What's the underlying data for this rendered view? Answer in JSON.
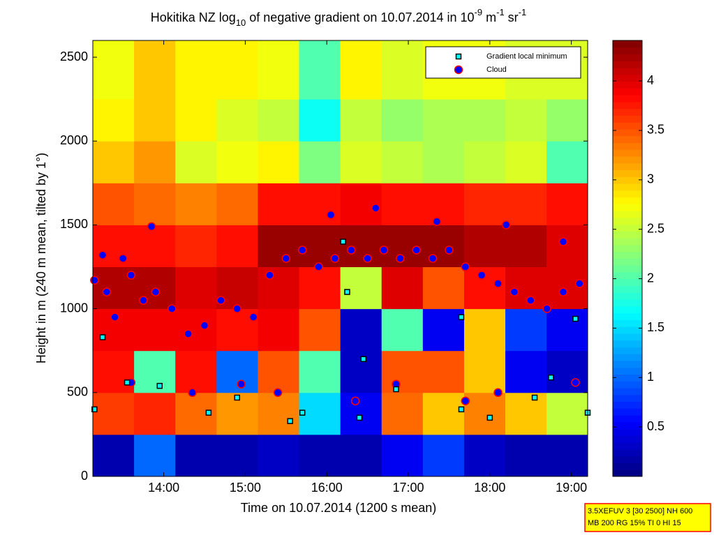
{
  "chart_data": {
    "type": "heatmap",
    "title_parts": [
      {
        "text": "Hokitika NZ log"
      },
      {
        "text": "10",
        "script": "sub"
      },
      {
        "text": " of negative gradient on 10.07.2014 in 10"
      },
      {
        "text": "-9",
        "script": "super"
      },
      {
        "text": " m"
      },
      {
        "text": "-1",
        "script": "super"
      },
      {
        "text": " sr"
      },
      {
        "text": "-1",
        "script": "super"
      }
    ],
    "xlabel": "Time on 10.07.2014 (1200 s mean)",
    "ylabel": "Height in m (240 m mean, tilted by 1°)",
    "xlim": [
      13.13,
      19.2
    ],
    "ylim": [
      0,
      2600
    ],
    "xticks": [
      {
        "value": 14,
        "label": "14:00"
      },
      {
        "value": 15,
        "label": "15:00"
      },
      {
        "value": 16,
        "label": "16:00"
      },
      {
        "value": 17,
        "label": "17:00"
      },
      {
        "value": 18,
        "label": "18:00"
      },
      {
        "value": 19,
        "label": "19:00"
      }
    ],
    "yticks": [
      0,
      500,
      1000,
      1500,
      2000,
      2500
    ],
    "clim": [
      0,
      4.41
    ],
    "cticks": [
      0.5,
      1,
      1.5,
      2,
      2.5,
      3,
      3.5,
      4
    ],
    "colormap": "jet",
    "x_bins": [
      13.13,
      13.636,
      14.142,
      14.648,
      15.154,
      15.66,
      16.166,
      16.672,
      17.178,
      17.684,
      18.19,
      18.696,
      19.2
    ],
    "y_bins": [
      0,
      250,
      500,
      750,
      1000,
      1250,
      1500,
      1750,
      2000,
      2250,
      2600
    ],
    "z": [
      [
        0.2,
        1.0,
        0.2,
        0.2,
        0.3,
        0.2,
        0.2,
        0.5,
        0.8,
        0.3,
        0.2,
        0.2
      ],
      [
        3.6,
        3.7,
        3.4,
        3.2,
        3.3,
        1.5,
        0.5,
        3.4,
        3.0,
        3.3,
        3.0,
        2.5
      ],
      [
        3.8,
        2.0,
        3.8,
        1.0,
        3.5,
        2.0,
        0.3,
        3.5,
        3.5,
        3.0,
        0.5,
        0.3
      ],
      [
        3.9,
        3.9,
        3.9,
        3.8,
        3.9,
        3.5,
        0.3,
        2.0,
        0.5,
        3.0,
        0.8,
        0.5
      ],
      [
        4.2,
        4.2,
        4.0,
        4.1,
        4.0,
        3.8,
        2.5,
        4.0,
        3.5,
        3.8,
        4.0,
        4.0
      ],
      [
        3.8,
        3.8,
        3.7,
        3.8,
        4.3,
        4.3,
        4.3,
        4.3,
        4.3,
        4.2,
        4.2,
        4.0
      ],
      [
        3.5,
        3.4,
        3.3,
        3.4,
        3.8,
        3.8,
        3.9,
        3.8,
        3.8,
        3.7,
        3.7,
        3.8
      ],
      [
        3.0,
        3.2,
        2.6,
        2.7,
        2.8,
        2.2,
        2.6,
        2.5,
        2.4,
        2.5,
        2.6,
        2.0
      ],
      [
        2.8,
        3.0,
        2.8,
        2.6,
        2.5,
        1.7,
        2.5,
        2.3,
        2.4,
        2.4,
        2.5,
        2.3
      ],
      [
        2.7,
        3.0,
        2.8,
        2.8,
        2.7,
        2.0,
        2.8,
        2.6,
        2.7,
        2.7,
        2.6,
        2.6
      ]
    ],
    "series": [
      {
        "name": "Gradient local minimum",
        "marker": "square",
        "color": "#00ffff",
        "edge": "#000000",
        "x": [
          13.15,
          13.25,
          13.55,
          13.95,
          14.55,
          14.9,
          15.55,
          15.7,
          16.2,
          16.25,
          16.45,
          16.4,
          16.85,
          17.65,
          17.65,
          18.0,
          18.55,
          18.75,
          19.05,
          19.2
        ],
        "y": [
          400,
          830,
          560,
          540,
          380,
          470,
          330,
          380,
          1400,
          1100,
          700,
          350,
          520,
          950,
          400,
          350,
          470,
          590,
          940,
          380
        ]
      },
      {
        "name": "Cloud",
        "marker": "circle",
        "color": "#0000ff",
        "edge": "#ff0000",
        "x": [
          13.15,
          13.3,
          13.4,
          13.5,
          13.6,
          13.75,
          13.9,
          14.1,
          14.3,
          14.5,
          14.7,
          14.9,
          15.1,
          15.3,
          15.5,
          15.7,
          15.9,
          16.1,
          16.3,
          16.5,
          16.7,
          16.9,
          17.1,
          17.3,
          17.5,
          17.7,
          17.9,
          18.1,
          18.3,
          18.5,
          18.7,
          18.9,
          19.1,
          13.6,
          14.35,
          14.95,
          15.4,
          16.35,
          16.85,
          17.7,
          18.1,
          19.05,
          13.25,
          13.85,
          16.05,
          16.6,
          17.35,
          18.2,
          18.9
        ],
        "y": [
          1170,
          1100,
          950,
          1300,
          1200,
          1050,
          1100,
          1000,
          850,
          900,
          1050,
          1000,
          950,
          1200,
          1300,
          1350,
          1250,
          1300,
          1350,
          1300,
          1350,
          1300,
          1350,
          1300,
          1350,
          1250,
          1200,
          1150,
          1100,
          1050,
          1000,
          1100,
          1150,
          560,
          500,
          550,
          500,
          450,
          550,
          450,
          500,
          560,
          1320,
          1490,
          1560,
          1600,
          1520,
          1500,
          1400
        ]
      }
    ],
    "annotation_lines": [
      "3.5XEFUV 3 [30 2500] NH 600",
      "MB 200 RG 15% TI 0 HI 15"
    ]
  }
}
